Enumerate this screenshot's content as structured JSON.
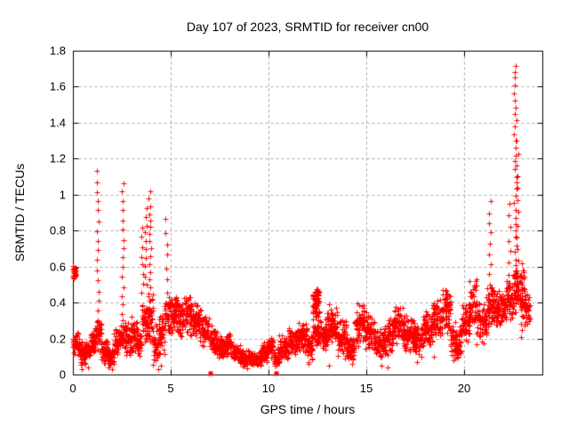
{
  "chart_data": {
    "type": "scatter",
    "title": "Day 107 of 2023, SRMTID for receiver cn00",
    "xlabel": "GPS time / hours",
    "ylabel": "SRMTID / TECUs",
    "xlim": [
      0,
      24
    ],
    "ylim": [
      0,
      1.8
    ],
    "xticks": [
      0,
      5,
      10,
      15,
      20
    ],
    "yticks": [
      0,
      0.2,
      0.4,
      0.6,
      0.8,
      1,
      1.2,
      1.4,
      1.6,
      1.8
    ],
    "grid": true,
    "legend_position": "none",
    "marker": "plus-cross",
    "marker_size_px": 7,
    "colors": {
      "points": "#ff0000",
      "grid": "#a8a8a8",
      "border": "#000000",
      "background": "#ffffff",
      "text": "#000000"
    },
    "band_points_per_hour": 140,
    "band_segments": [
      [
        0.0,
        0.15,
        0.52,
        0.62,
        1.3
      ],
      [
        0.0,
        0.35,
        0.1,
        0.24,
        1
      ],
      [
        0.35,
        0.9,
        0.05,
        0.19,
        1
      ],
      [
        0.9,
        1.15,
        0.09,
        0.26,
        1
      ],
      [
        1.15,
        1.45,
        0.12,
        0.34,
        1
      ],
      [
        1.45,
        1.8,
        0.05,
        0.2,
        1
      ],
      [
        1.8,
        2.1,
        0.03,
        0.16,
        1
      ],
      [
        2.1,
        2.4,
        0.08,
        0.26,
        1
      ],
      [
        2.4,
        2.7,
        0.12,
        0.32,
        1
      ],
      [
        2.7,
        3.0,
        0.1,
        0.3,
        1
      ],
      [
        3.0,
        3.3,
        0.1,
        0.35,
        1
      ],
      [
        3.3,
        3.5,
        0.06,
        0.28,
        1
      ],
      [
        3.5,
        3.85,
        0.15,
        0.45,
        1
      ],
      [
        3.85,
        4.1,
        0.15,
        0.48,
        1
      ],
      [
        4.1,
        4.4,
        0.04,
        0.28,
        1
      ],
      [
        4.4,
        4.7,
        0.1,
        0.35,
        1
      ],
      [
        4.7,
        4.95,
        0.18,
        0.45,
        1
      ],
      [
        4.95,
        5.35,
        0.22,
        0.48,
        1
      ],
      [
        5.35,
        5.75,
        0.18,
        0.44,
        1
      ],
      [
        5.75,
        6.15,
        0.2,
        0.46,
        1
      ],
      [
        6.15,
        6.55,
        0.18,
        0.4,
        1
      ],
      [
        6.55,
        6.95,
        0.14,
        0.34,
        1
      ],
      [
        6.95,
        7.35,
        0.11,
        0.28,
        1
      ],
      [
        7.35,
        7.75,
        0.08,
        0.22,
        1
      ],
      [
        7.75,
        8.15,
        0.09,
        0.24,
        1
      ],
      [
        8.15,
        8.55,
        0.06,
        0.17,
        1
      ],
      [
        8.55,
        9.1,
        0.04,
        0.14,
        1
      ],
      [
        9.1,
        9.6,
        0.04,
        0.13,
        1
      ],
      [
        9.6,
        9.95,
        0.06,
        0.18,
        1
      ],
      [
        9.95,
        10.25,
        0.09,
        0.22,
        1
      ],
      [
        10.25,
        10.55,
        0.04,
        0.15,
        1
      ],
      [
        10.55,
        11.05,
        0.08,
        0.22,
        1
      ],
      [
        11.05,
        11.55,
        0.1,
        0.26,
        1
      ],
      [
        11.55,
        12.0,
        0.1,
        0.3,
        1
      ],
      [
        12.0,
        12.25,
        0.06,
        0.24,
        1
      ],
      [
        12.25,
        12.6,
        0.29,
        0.51,
        1.5
      ],
      [
        12.25,
        12.6,
        0.15,
        0.3,
        0.8
      ],
      [
        12.6,
        13.0,
        0.13,
        0.33,
        1
      ],
      [
        13.0,
        13.5,
        0.16,
        0.4,
        1
      ],
      [
        13.5,
        14.0,
        0.1,
        0.32,
        1
      ],
      [
        14.0,
        14.4,
        0.05,
        0.24,
        1
      ],
      [
        14.4,
        14.9,
        0.14,
        0.4,
        1
      ],
      [
        14.9,
        15.4,
        0.13,
        0.36,
        1
      ],
      [
        15.4,
        15.9,
        0.08,
        0.28,
        1
      ],
      [
        15.9,
        16.4,
        0.1,
        0.33,
        1
      ],
      [
        16.4,
        16.9,
        0.15,
        0.4,
        1
      ],
      [
        16.9,
        17.4,
        0.12,
        0.34,
        1
      ],
      [
        17.4,
        17.9,
        0.08,
        0.3,
        1
      ],
      [
        17.9,
        18.4,
        0.14,
        0.36,
        1
      ],
      [
        18.4,
        18.9,
        0.2,
        0.44,
        1
      ],
      [
        18.9,
        19.3,
        0.22,
        0.5,
        1
      ],
      [
        19.3,
        19.85,
        0.08,
        0.3,
        1
      ],
      [
        19.85,
        20.25,
        0.15,
        0.42,
        1
      ],
      [
        20.25,
        20.65,
        0.22,
        0.55,
        1
      ],
      [
        20.65,
        21.15,
        0.16,
        0.42,
        1
      ],
      [
        21.15,
        21.6,
        0.25,
        0.5,
        1
      ],
      [
        21.6,
        22.1,
        0.25,
        0.48,
        1
      ],
      [
        22.1,
        22.55,
        0.28,
        0.55,
        1
      ],
      [
        22.55,
        22.85,
        0.33,
        0.6,
        1
      ],
      [
        22.85,
        23.1,
        0.25,
        0.6,
        1
      ],
      [
        23.1,
        23.35,
        0.27,
        0.46,
        1
      ]
    ],
    "spike_columns": [
      [
        1.27,
        0.3,
        1.13,
        16
      ],
      [
        2.55,
        0.33,
        1.07,
        15
      ],
      [
        3.55,
        0.45,
        0.82,
        8
      ],
      [
        3.72,
        0.5,
        0.93,
        10
      ],
      [
        3.92,
        0.33,
        1.02,
        18
      ],
      [
        4.78,
        0.33,
        0.86,
        9
      ],
      [
        21.32,
        0.5,
        0.96,
        9
      ],
      [
        22.3,
        0.55,
        0.95,
        7
      ],
      [
        22.62,
        0.45,
        1.72,
        34
      ],
      [
        22.73,
        0.5,
        1.3,
        13
      ],
      [
        22.95,
        0.2,
        0.62,
        11
      ]
    ],
    "low_outliers": [
      [
        0.45,
        0.03
      ],
      [
        0.75,
        0.04
      ],
      [
        1.82,
        0.04
      ],
      [
        2.0,
        0.03
      ],
      [
        4.35,
        0.03
      ],
      [
        4.5,
        0.05
      ],
      [
        8.9,
        0.035
      ],
      [
        10.3,
        0.05
      ],
      [
        12.05,
        0.06
      ],
      [
        13.1,
        0.05
      ],
      [
        13.9,
        0.09
      ],
      [
        14.25,
        0.06
      ],
      [
        15.75,
        0.05
      ],
      [
        16.1,
        0.04
      ],
      [
        17.6,
        0.07
      ],
      [
        18.45,
        0.1
      ],
      [
        19.45,
        0.08
      ],
      [
        19.7,
        0.1
      ]
    ],
    "axis_squares": [
      [
        7.0,
        0
      ],
      [
        10.35,
        0
      ]
    ]
  }
}
